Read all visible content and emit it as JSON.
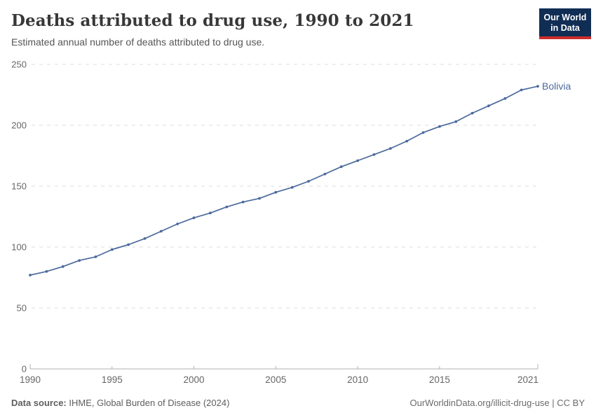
{
  "header": {
    "title": "Deaths attributed to drug use, 1990 to 2021",
    "subtitle": "Estimated annual number of deaths attributed to drug use.",
    "logo": {
      "line1": "Our World",
      "line2": "in Data"
    }
  },
  "chart_data": {
    "type": "line",
    "title": "Deaths attributed to drug use, 1990 to 2021",
    "xlabel": "",
    "ylabel": "",
    "x": [
      1990,
      1991,
      1992,
      1993,
      1994,
      1995,
      1996,
      1997,
      1998,
      1999,
      2000,
      2001,
      2002,
      2003,
      2004,
      2005,
      2006,
      2007,
      2008,
      2009,
      2010,
      2011,
      2012,
      2013,
      2014,
      2015,
      2016,
      2017,
      2018,
      2019,
      2020,
      2021
    ],
    "series": [
      {
        "name": "Bolivia",
        "color": "#4c6a9c",
        "values": [
          77,
          80,
          84,
          89,
          92,
          98,
          102,
          107,
          113,
          119,
          124,
          128,
          133,
          137,
          140,
          145,
          149,
          154,
          160,
          166,
          171,
          176,
          181,
          187,
          194,
          199,
          203,
          210,
          216,
          222,
          229,
          232
        ]
      }
    ],
    "ylim": [
      0,
      250
    ],
    "yticks": [
      0,
      50,
      100,
      150,
      200,
      250
    ],
    "xticks": [
      1990,
      1995,
      2000,
      2005,
      2010,
      2015,
      2021
    ],
    "grid": "horizontal-dashed",
    "legend_position": "end-of-line-label",
    "end_label": "Bolivia"
  },
  "footer": {
    "source_label": "Data source:",
    "source_text": " IHME, Global Burden of Disease (2024)",
    "credit": "OurWorldinData.org/illicit-drug-use | CC BY"
  },
  "colors": {
    "line": "#4c6a9c",
    "gridline": "#dedede",
    "axis": "#b0b0b0",
    "tick_label": "#666666",
    "title": "#383838",
    "subtitle": "#555555",
    "footer_text": "#5e5e5e",
    "logo_bg": "#102d54",
    "logo_accent": "#cb2d2b"
  }
}
